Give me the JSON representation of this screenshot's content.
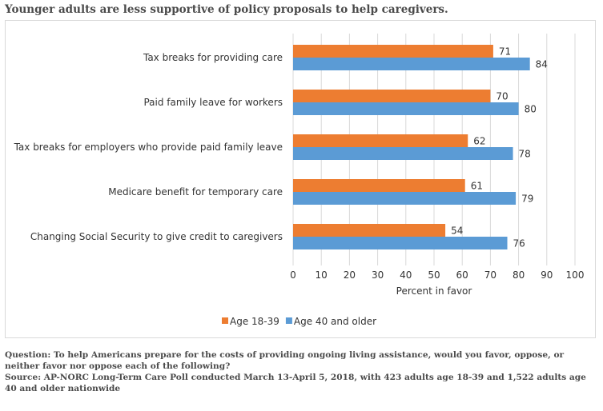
{
  "title": "Younger adults are less supportive of policy proposals to help caregivers.",
  "footnote": {
    "question": "Question: To help Americans prepare for the costs of providing ongoing living assistance, would you favor, oppose, or neither favor nor oppose each of the following?",
    "source": "Source: AP-NORC Long-Term Care Poll conducted March 13-April 5, 2018, with 423 adults age 18-39 and 1,522 adults age 40 and older nationwide"
  },
  "chart_data": {
    "type": "bar",
    "orientation": "horizontal",
    "categories": [
      "Tax breaks for providing care",
      "Paid family leave for workers",
      "Tax breaks for employers who provide paid family leave",
      "Medicare benefit for temporary care",
      "Changing Social Security to give credit to caregivers"
    ],
    "series": [
      {
        "name": "Age 18-39",
        "color": "#ED7D31",
        "values": [
          71,
          70,
          62,
          61,
          54
        ]
      },
      {
        "name": "Age 40 and older",
        "color": "#5B9BD5",
        "values": [
          84,
          80,
          78,
          79,
          76
        ]
      }
    ],
    "xlabel": "Percent in favor",
    "xlim": [
      0,
      100
    ],
    "xticks": [
      0,
      10,
      20,
      30,
      40,
      50,
      60,
      70,
      80,
      90,
      100
    ],
    "grid": true,
    "legend_position": "bottom-left"
  }
}
